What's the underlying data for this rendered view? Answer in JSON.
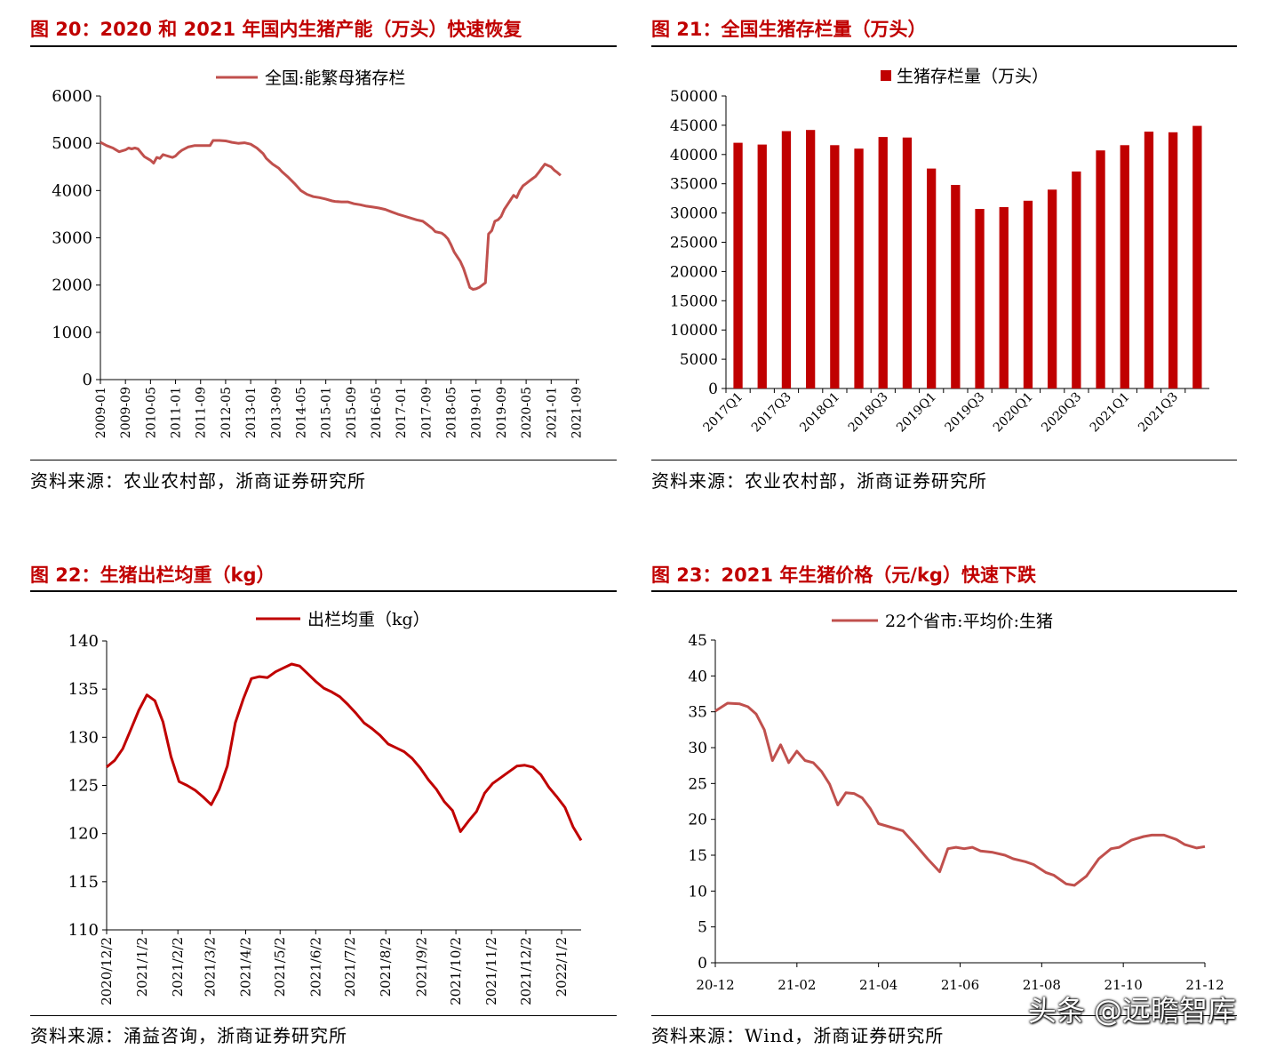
{
  "watermark": "头条 @远瞻智库",
  "panels": [
    {
      "id": "fig20",
      "title": "图 20：2020 和 2021 年国内生猪产能（万头）快速恢复",
      "source": "资料来源：农业农村部，浙商证券研究所",
      "chart_data": {
        "type": "line",
        "legend": "全国:能繁母猪存栏",
        "color": "#c0504d",
        "ylim": [
          0,
          6000
        ],
        "yticks": [
          0,
          1000,
          2000,
          3000,
          4000,
          5000,
          6000
        ],
        "xlim": [
          0,
          153
        ],
        "xticks": [
          {
            "label": "2009-01",
            "t": 0
          },
          {
            "label": "2009-09",
            "t": 8
          },
          {
            "label": "2010-05",
            "t": 16
          },
          {
            "label": "2011-01",
            "t": 24
          },
          {
            "label": "2011-09",
            "t": 32
          },
          {
            "label": "2012-05",
            "t": 40
          },
          {
            "label": "2013-01",
            "t": 48
          },
          {
            "label": "2013-09",
            "t": 56
          },
          {
            "label": "2014-05",
            "t": 64
          },
          {
            "label": "2015-01",
            "t": 72
          },
          {
            "label": "2015-09",
            "t": 80
          },
          {
            "label": "2016-05",
            "t": 88
          },
          {
            "label": "2017-01",
            "t": 96
          },
          {
            "label": "2017-09",
            "t": 104
          },
          {
            "label": "2018-05",
            "t": 112
          },
          {
            "label": "2019-01",
            "t": 120
          },
          {
            "label": "2019-09",
            "t": 128
          },
          {
            "label": "2020-05",
            "t": 136
          },
          {
            "label": "2021-01",
            "t": 144
          },
          {
            "label": "2021-09",
            "t": 152
          }
        ],
        "points": [
          [
            0,
            5020
          ],
          [
            2,
            4950
          ],
          [
            4,
            4900
          ],
          [
            6,
            4820
          ],
          [
            8,
            4860
          ],
          [
            9,
            4900
          ],
          [
            10,
            4880
          ],
          [
            11,
            4900
          ],
          [
            12,
            4880
          ],
          [
            13,
            4800
          ],
          [
            14,
            4720
          ],
          [
            15,
            4680
          ],
          [
            16,
            4640
          ],
          [
            17,
            4580
          ],
          [
            18,
            4700
          ],
          [
            19,
            4680
          ],
          [
            20,
            4760
          ],
          [
            21,
            4740
          ],
          [
            22,
            4720
          ],
          [
            23,
            4700
          ],
          [
            24,
            4730
          ],
          [
            25,
            4800
          ],
          [
            26,
            4850
          ],
          [
            28,
            4920
          ],
          [
            30,
            4950
          ],
          [
            33,
            4950
          ],
          [
            35,
            4950
          ],
          [
            36,
            5060
          ],
          [
            38,
            5060
          ],
          [
            40,
            5050
          ],
          [
            42,
            5020
          ],
          [
            44,
            5000
          ],
          [
            46,
            5010
          ],
          [
            48,
            4980
          ],
          [
            50,
            4900
          ],
          [
            52,
            4780
          ],
          [
            53,
            4680
          ],
          [
            54,
            4620
          ],
          [
            55,
            4560
          ],
          [
            57,
            4470
          ],
          [
            58,
            4400
          ],
          [
            60,
            4280
          ],
          [
            62,
            4150
          ],
          [
            64,
            4000
          ],
          [
            66,
            3920
          ],
          [
            68,
            3870
          ],
          [
            70,
            3850
          ],
          [
            72,
            3820
          ],
          [
            74,
            3780
          ],
          [
            75,
            3770
          ],
          [
            77,
            3760
          ],
          [
            79,
            3760
          ],
          [
            81,
            3720
          ],
          [
            83,
            3700
          ],
          [
            85,
            3670
          ],
          [
            87,
            3650
          ],
          [
            89,
            3630
          ],
          [
            91,
            3600
          ],
          [
            93,
            3550
          ],
          [
            95,
            3500
          ],
          [
            97,
            3460
          ],
          [
            99,
            3420
          ],
          [
            101,
            3380
          ],
          [
            103,
            3350
          ],
          [
            104,
            3300
          ],
          [
            105,
            3250
          ],
          [
            106,
            3200
          ],
          [
            107,
            3130
          ],
          [
            109,
            3100
          ],
          [
            110,
            3050
          ],
          [
            111,
            2980
          ],
          [
            112,
            2850
          ],
          [
            113,
            2700
          ],
          [
            114,
            2600
          ],
          [
            115,
            2500
          ],
          [
            116,
            2350
          ],
          [
            117,
            2150
          ],
          [
            118,
            1950
          ],
          [
            119,
            1910
          ],
          [
            120,
            1920
          ],
          [
            121,
            1950
          ],
          [
            122,
            2000
          ],
          [
            123,
            2050
          ],
          [
            124,
            3080
          ],
          [
            125,
            3150
          ],
          [
            126,
            3350
          ],
          [
            127,
            3380
          ],
          [
            128,
            3450
          ],
          [
            129,
            3600
          ],
          [
            130,
            3700
          ],
          [
            131,
            3800
          ],
          [
            132,
            3900
          ],
          [
            133,
            3850
          ],
          [
            134,
            4000
          ],
          [
            135,
            4100
          ],
          [
            136,
            4150
          ],
          [
            137,
            4200
          ],
          [
            138,
            4250
          ],
          [
            139,
            4300
          ],
          [
            140,
            4380
          ],
          [
            141,
            4470
          ],
          [
            142,
            4560
          ],
          [
            143,
            4530
          ],
          [
            144,
            4500
          ],
          [
            145,
            4430
          ],
          [
            146,
            4380
          ],
          [
            147,
            4320
          ]
        ]
      }
    },
    {
      "id": "fig21",
      "title": "图 21：全国生猪存栏量（万头）",
      "source": "资料来源：农业农村部，浙商证券研究所",
      "chart_data": {
        "type": "bar",
        "legend": "生猪存栏量（万头）",
        "color": "#c00000",
        "ylim": [
          0,
          50000
        ],
        "yticks": [
          0,
          5000,
          10000,
          15000,
          20000,
          25000,
          30000,
          35000,
          40000,
          45000,
          50000
        ],
        "categories": [
          "2017Q1",
          "2017Q2",
          "2017Q3",
          "2017Q4",
          "2018Q1",
          "2018Q2",
          "2018Q3",
          "2018Q4",
          "2019Q1",
          "2019Q2",
          "2019Q3",
          "2019Q4",
          "2020Q1",
          "2020Q2",
          "2020Q3",
          "2020Q4",
          "2021Q1",
          "2021Q2",
          "2021Q3",
          "2021Q4"
        ],
        "tick_labels": [
          "2017Q1",
          "",
          "2017Q3",
          "",
          "2018Q1",
          "",
          "2018Q3",
          "",
          "2019Q1",
          "",
          "2019Q3",
          "",
          "2020Q1",
          "",
          "2020Q3",
          "",
          "2021Q1",
          "",
          "2021Q3",
          ""
        ],
        "values": [
          42000,
          41700,
          44000,
          44200,
          41600,
          41000,
          43000,
          42900,
          37600,
          34800,
          30700,
          31000,
          32100,
          34000,
          37100,
          40700,
          41600,
          43900,
          43800,
          44900
        ]
      }
    },
    {
      "id": "fig22",
      "title": "图 22：生猪出栏均重（kg）",
      "source": "资料来源：涌益咨询，浙商证券研究所",
      "chart_data": {
        "type": "line",
        "legend": "出栏均重（kg）",
        "color": "#c00000",
        "ylim": [
          110,
          140
        ],
        "yticks": [
          110,
          115,
          120,
          125,
          130,
          135,
          140
        ],
        "xlim": [
          0,
          59
        ],
        "xticks": [
          {
            "label": "2020/12/2",
            "t": 0
          },
          {
            "label": "2021/1/2",
            "t": 4.43
          },
          {
            "label": "2021/2/2",
            "t": 8.86
          },
          {
            "label": "2021/3/2",
            "t": 12.86
          },
          {
            "label": "2021/4/2",
            "t": 17.29
          },
          {
            "label": "2021/5/2",
            "t": 21.57
          },
          {
            "label": "2021/6/2",
            "t": 26
          },
          {
            "label": "2021/7/2",
            "t": 30.29
          },
          {
            "label": "2021/8/2",
            "t": 34.71
          },
          {
            "label": "2021/9/2",
            "t": 39.14
          },
          {
            "label": "2021/10/2",
            "t": 43.43
          },
          {
            "label": "2021/11/2",
            "t": 47.86
          },
          {
            "label": "2021/12/2",
            "t": 52.14
          },
          {
            "label": "2022/1/2",
            "t": 56.57
          }
        ],
        "points": [
          [
            0,
            126.9
          ],
          [
            1,
            127.6
          ],
          [
            2,
            128.8
          ],
          [
            3,
            130.8
          ],
          [
            4,
            132.8
          ],
          [
            5,
            134.4
          ],
          [
            6,
            133.8
          ],
          [
            7,
            131.6
          ],
          [
            8,
            128.0
          ],
          [
            9,
            125.4
          ],
          [
            10,
            125.0
          ],
          [
            11,
            124.5
          ],
          [
            12,
            123.8
          ],
          [
            13,
            123.0
          ],
          [
            14,
            124.6
          ],
          [
            15,
            127.0
          ],
          [
            16,
            131.5
          ],
          [
            17,
            134.0
          ],
          [
            18,
            136.1
          ],
          [
            19,
            136.3
          ],
          [
            20,
            136.2
          ],
          [
            21,
            136.8
          ],
          [
            22,
            137.2
          ],
          [
            23,
            137.6
          ],
          [
            24,
            137.4
          ],
          [
            25,
            136.6
          ],
          [
            26,
            135.8
          ],
          [
            27,
            135.1
          ],
          [
            28,
            134.7
          ],
          [
            29,
            134.2
          ],
          [
            30,
            133.4
          ],
          [
            31,
            132.5
          ],
          [
            32,
            131.5
          ],
          [
            33,
            130.9
          ],
          [
            34,
            130.2
          ],
          [
            35,
            129.3
          ],
          [
            36,
            128.9
          ],
          [
            37,
            128.5
          ],
          [
            38,
            127.8
          ],
          [
            39,
            126.8
          ],
          [
            40,
            125.6
          ],
          [
            41,
            124.6
          ],
          [
            42,
            123.3
          ],
          [
            43,
            122.4
          ],
          [
            44,
            120.2
          ],
          [
            45,
            121.3
          ],
          [
            46,
            122.3
          ],
          [
            47,
            124.2
          ],
          [
            48,
            125.2
          ],
          [
            49,
            125.8
          ],
          [
            50,
            126.4
          ],
          [
            51,
            127.0
          ],
          [
            52,
            127.1
          ],
          [
            53,
            126.9
          ],
          [
            54,
            126.1
          ],
          [
            55,
            124.8
          ],
          [
            56,
            123.8
          ],
          [
            57,
            122.7
          ],
          [
            58,
            120.7
          ],
          [
            59,
            119.3
          ]
        ]
      }
    },
    {
      "id": "fig23",
      "title": "图 23：2021 年生猪价格（元/kg）快速下跌",
      "source": "资料来源：Wind，浙商证券研究所",
      "chart_data": {
        "type": "line",
        "legend": "22个省市:平均价:生猪",
        "color": "#c0504d",
        "ylim": [
          0,
          45
        ],
        "yticks": [
          0,
          5,
          10,
          15,
          20,
          25,
          30,
          35,
          40,
          45
        ],
        "xlim": [
          0,
          12
        ],
        "xticks": [
          {
            "label": "20-12",
            "t": 0
          },
          {
            "label": "21-02",
            "t": 2
          },
          {
            "label": "21-04",
            "t": 4
          },
          {
            "label": "21-06",
            "t": 6
          },
          {
            "label": "21-08",
            "t": 8
          },
          {
            "label": "21-10",
            "t": 10
          },
          {
            "label": "21-12",
            "t": 12
          }
        ],
        "points": [
          [
            0,
            35.1
          ],
          [
            0.3,
            36.2
          ],
          [
            0.6,
            36.1
          ],
          [
            0.8,
            35.7
          ],
          [
            1.0,
            34.7
          ],
          [
            1.2,
            32.5
          ],
          [
            1.4,
            28.2
          ],
          [
            1.6,
            30.4
          ],
          [
            1.8,
            27.9
          ],
          [
            2.0,
            29.5
          ],
          [
            2.2,
            28.2
          ],
          [
            2.4,
            27.9
          ],
          [
            2.6,
            26.7
          ],
          [
            2.8,
            24.9
          ],
          [
            3.0,
            22.0
          ],
          [
            3.2,
            23.7
          ],
          [
            3.4,
            23.6
          ],
          [
            3.6,
            23.0
          ],
          [
            3.8,
            21.5
          ],
          [
            4.0,
            19.4
          ],
          [
            4.3,
            18.9
          ],
          [
            4.6,
            18.4
          ],
          [
            4.9,
            16.5
          ],
          [
            5.2,
            14.5
          ],
          [
            5.5,
            12.7
          ],
          [
            5.7,
            15.9
          ],
          [
            5.9,
            16.1
          ],
          [
            6.1,
            15.9
          ],
          [
            6.3,
            16.1
          ],
          [
            6.5,
            15.6
          ],
          [
            6.8,
            15.4
          ],
          [
            7.1,
            15.0
          ],
          [
            7.3,
            14.5
          ],
          [
            7.6,
            14.1
          ],
          [
            7.8,
            13.7
          ],
          [
            8.1,
            12.6
          ],
          [
            8.3,
            12.2
          ],
          [
            8.6,
            11.0
          ],
          [
            8.8,
            10.8
          ],
          [
            9.1,
            12.1
          ],
          [
            9.4,
            14.5
          ],
          [
            9.7,
            15.9
          ],
          [
            9.9,
            16.1
          ],
          [
            10.2,
            17.1
          ],
          [
            10.5,
            17.6
          ],
          [
            10.7,
            17.8
          ],
          [
            11.0,
            17.8
          ],
          [
            11.3,
            17.2
          ],
          [
            11.5,
            16.5
          ],
          [
            11.8,
            16.0
          ],
          [
            12.0,
            16.2
          ]
        ]
      }
    }
  ]
}
